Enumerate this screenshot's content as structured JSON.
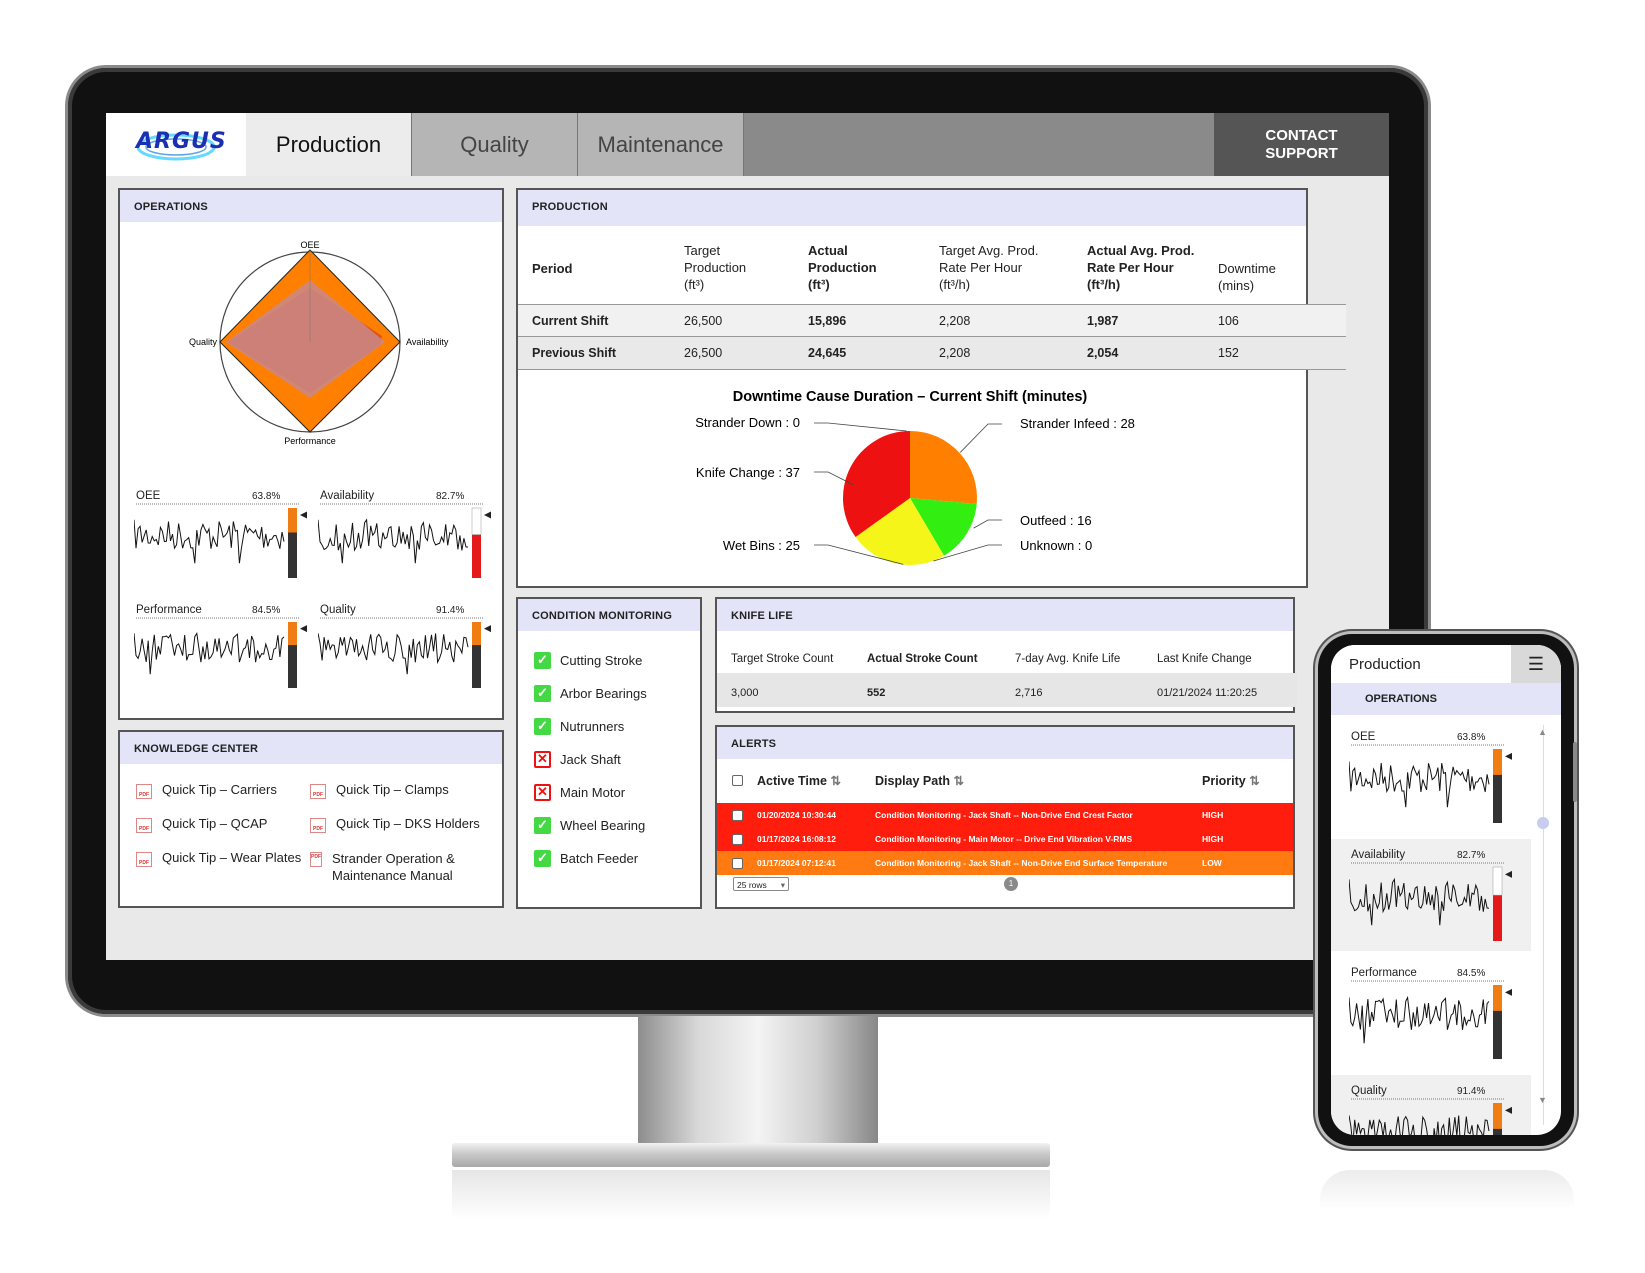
{
  "nav": {
    "logo": "ARGUS",
    "tabs": [
      "Production",
      "Quality",
      "Maintenance"
    ],
    "contact_line1": "CONTACT",
    "contact_line2": "SUPPORT"
  },
  "operations": {
    "title": "OPERATIONS",
    "radar_labels": {
      "top": "OEE",
      "right": "Availability",
      "bottom": "Performance",
      "left": "Quality"
    },
    "metrics": [
      {
        "label": "OEE",
        "value": "63.8%",
        "fill": 0.638,
        "status_color": "#f07d14"
      },
      {
        "label": "Availability",
        "value": "82.7%",
        "fill": 0.827,
        "status_color": "#e41a1a"
      },
      {
        "label": "Performance",
        "value": "84.5%",
        "fill": 0.845,
        "status_color": "#f07d14"
      },
      {
        "label": "Quality",
        "value": "91.4%",
        "fill": 0.914,
        "status_color": "#f07d14"
      }
    ]
  },
  "production": {
    "title": "PRODUCTION",
    "headers": {
      "period": "Period",
      "target_production": [
        "Target",
        "Production",
        "(ft³)"
      ],
      "actual_production": [
        "Actual",
        "Production",
        "(ft³)"
      ],
      "target_rate": [
        "Target Avg. Prod.",
        "Rate Per Hour",
        "(ft³/h)"
      ],
      "actual_rate": [
        "Actual Avg. Prod.",
        "Rate Per Hour",
        "(ft³/h)"
      ],
      "downtime": [
        "Downtime",
        "(mins)"
      ]
    },
    "rows": [
      {
        "period": "Current Shift",
        "target": "26,500",
        "actual": "15,896",
        "target_rate": "2,208",
        "actual_rate": "1,987",
        "downtime": "106"
      },
      {
        "period": "Previous Shift",
        "target": "26,500",
        "actual": "24,645",
        "target_rate": "2,208",
        "actual_rate": "2,054",
        "downtime": "152"
      }
    ]
  },
  "chart_data": {
    "type": "pie",
    "title": "Downtime Cause Duration – Current Shift (minutes)",
    "categories": [
      "Strander Infeed",
      "Outfeed",
      "Unknown",
      "Wet Bins",
      "Knife Change",
      "Strander Down"
    ],
    "values": [
      28,
      16,
      0,
      25,
      37,
      0
    ],
    "labels": [
      "Strander Infeed : 28",
      "Outfeed : 16",
      "Unknown : 0",
      "Wet Bins : 25",
      "Knife Change : 37",
      "Strander Down : 0"
    ],
    "colors": [
      "#ff7f00",
      "#33ee11",
      "#cccccc",
      "#f5f519",
      "#ee1111",
      "#999999"
    ]
  },
  "condition_monitoring": {
    "title": "CONDITION MONITORING",
    "items": [
      {
        "label": "Cutting Stroke",
        "ok": true
      },
      {
        "label": "Arbor Bearings",
        "ok": true
      },
      {
        "label": "Nutrunners",
        "ok": true
      },
      {
        "label": "Jack Shaft",
        "ok": false
      },
      {
        "label": "Main Motor",
        "ok": false
      },
      {
        "label": "Wheel Bearing",
        "ok": true
      },
      {
        "label": "Batch Feeder",
        "ok": true
      }
    ]
  },
  "knife_life": {
    "title": "KNIFE LIFE",
    "headers": [
      "Target Stroke Count",
      "Actual Stroke Count",
      "7-day Avg. Knife Life",
      "Last Knife Change"
    ],
    "values": [
      "3,000",
      "552",
      "2,716",
      "01/21/2024 11:20:25"
    ]
  },
  "alerts": {
    "title": "ALERTS",
    "headers": [
      "Active Time",
      "Display Path",
      "Priority"
    ],
    "rows": [
      {
        "time": "01/20/2024 10:30:44",
        "path": "Condition Monitoring - Jack Shaft -- Non-Drive End Crest Factor",
        "priority": "HIGH",
        "color": "#ff1d0d"
      },
      {
        "time": "01/17/2024 16:08:12",
        "path": "Condition Monitoring - Main Motor -- Drive End Vibration V-RMS",
        "priority": "HIGH",
        "color": "#ff1d0d"
      },
      {
        "time": "01/17/2024 07:12:41",
        "path": "Condition Monitoring - Jack Shaft -- Non-Drive End Surface Temperature",
        "priority": "LOW",
        "color": "#ff7a10"
      }
    ],
    "rows_select": "25 rows",
    "page": "1"
  },
  "knowledge_center": {
    "title": "KNOWLEDGE CENTER",
    "items": [
      "Quick Tip – Carriers",
      "Quick Tip – Clamps",
      "Quick Tip – QCAP",
      "Quick Tip – DKS Holders",
      "Quick Tip – Wear Plates",
      "Strander Operation & Maintenance Manual"
    ]
  },
  "phone": {
    "title": "Production",
    "section": "OPERATIONS",
    "metrics": [
      {
        "label": "OEE",
        "value": "63.8%"
      },
      {
        "label": "Availability",
        "value": "82.7%"
      },
      {
        "label": "Performance",
        "value": "84.5%"
      },
      {
        "label": "Quality",
        "value": "91.4%"
      }
    ]
  }
}
